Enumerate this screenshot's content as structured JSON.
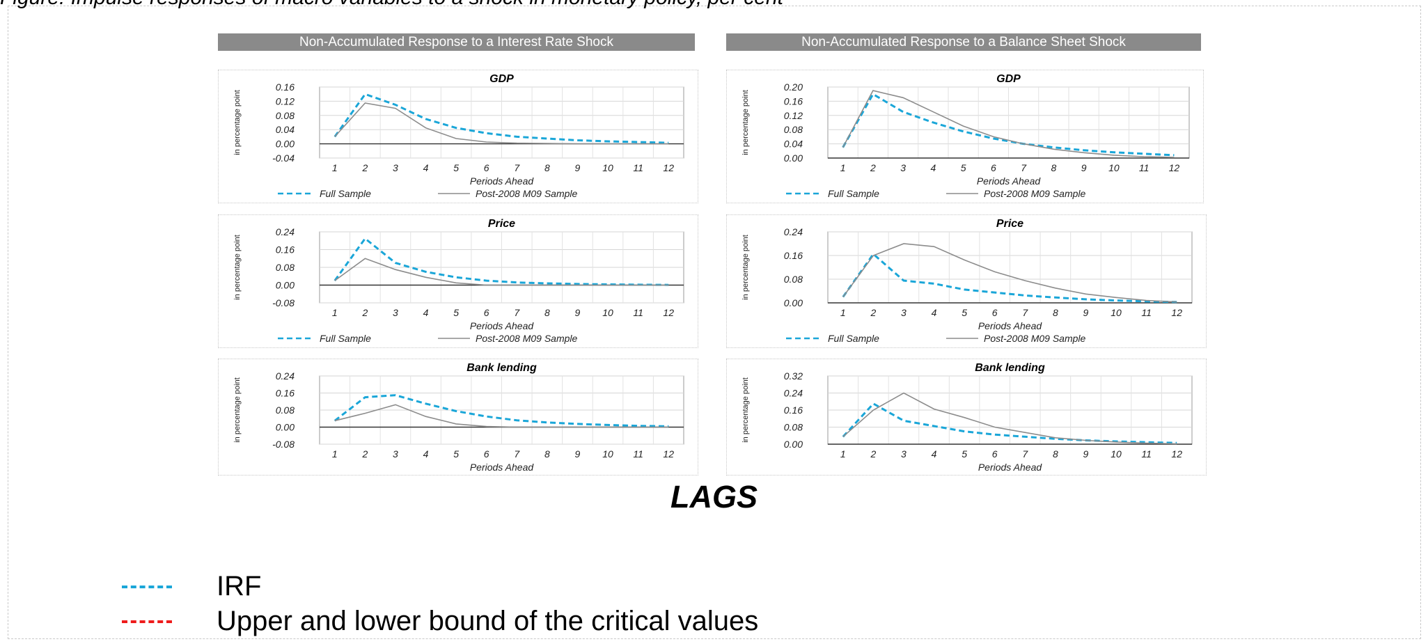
{
  "header_caption": "Figure: Impulse responses of macro variables to a shock in monetary policy, per cent",
  "column_headers": [
    "Non-Accumulated Response to a Interest Rate Shock",
    "Non-Accumulated Response to a Balance Sheet Shock"
  ],
  "x_axis_label": "Periods Ahead",
  "lags_label": "LAGS",
  "colors": {
    "full_sample": "#1aa6d8",
    "post_sample": "#8c8c8c",
    "irf": "#1aa6d8",
    "bounds": "#ee1c1c",
    "header_bg": "#8a8a8a"
  },
  "legend": [
    {
      "color": "#1aa6d8",
      "label": "IRF"
    },
    {
      "color": "#ee1c1c",
      "label": "Upper and lower bound of the critical values"
    }
  ],
  "chart_data": [
    {
      "type": "line",
      "title": "GDP",
      "ylabel": "in percentage point",
      "xlabel": "Periods Ahead",
      "x": [
        1,
        2,
        3,
        4,
        5,
        6,
        7,
        8,
        9,
        10,
        11,
        12
      ],
      "ylim": [
        -0.04,
        0.16
      ],
      "yticks": [
        "0.16",
        "0.12",
        "0.08",
        "0.04",
        "0.00",
        "-0.04"
      ],
      "series": [
        {
          "name": "Full Sample",
          "style": "dashed",
          "values": [
            0.02,
            0.14,
            0.11,
            0.07,
            0.045,
            0.03,
            0.02,
            0.015,
            0.01,
            0.007,
            0.005,
            0.003
          ]
        },
        {
          "name": "Post-2008 M09 Sample",
          "style": "solid",
          "values": [
            0.02,
            0.115,
            0.1,
            0.045,
            0.015,
            0.005,
            0.002,
            0.001,
            0.0,
            0.0,
            0.0,
            0.0
          ]
        }
      ],
      "legend": true
    },
    {
      "type": "line",
      "title": "GDP",
      "ylabel": "in percentage point",
      "xlabel": "Periods Ahead",
      "x": [
        1,
        2,
        3,
        4,
        5,
        6,
        7,
        8,
        9,
        10,
        11,
        12
      ],
      "ylim": [
        0.0,
        0.2
      ],
      "yticks": [
        "0.20",
        "0.16",
        "0.12",
        "0.08",
        "0.04",
        "0.00"
      ],
      "series": [
        {
          "name": "Full Sample",
          "style": "dashed",
          "values": [
            0.03,
            0.18,
            0.13,
            0.1,
            0.075,
            0.055,
            0.04,
            0.03,
            0.022,
            0.016,
            0.012,
            0.008
          ]
        },
        {
          "name": "Post-2008 M09 Sample",
          "style": "solid",
          "values": [
            0.03,
            0.19,
            0.17,
            0.13,
            0.09,
            0.06,
            0.04,
            0.025,
            0.015,
            0.008,
            0.004,
            0.002
          ]
        }
      ],
      "legend": true
    },
    {
      "type": "line",
      "title": "Price",
      "ylabel": "in percentage point",
      "xlabel": "Periods Ahead",
      "x": [
        1,
        2,
        3,
        4,
        5,
        6,
        7,
        8,
        9,
        10,
        11,
        12
      ],
      "ylim": [
        -0.08,
        0.24
      ],
      "yticks": [
        "0.24",
        "0.16",
        "0.08",
        "0.00",
        "-0.08"
      ],
      "series": [
        {
          "name": "Full Sample",
          "style": "dashed",
          "values": [
            0.02,
            0.21,
            0.1,
            0.06,
            0.035,
            0.02,
            0.012,
            0.008,
            0.005,
            0.003,
            0.002,
            0.001
          ]
        },
        {
          "name": "Post-2008 M09 Sample",
          "style": "solid",
          "values": [
            0.02,
            0.12,
            0.07,
            0.035,
            0.01,
            0.0,
            0.0,
            0.0,
            0.0,
            0.0,
            0.0,
            0.0
          ]
        }
      ],
      "legend": true
    },
    {
      "type": "line",
      "title": "Price",
      "ylabel": "in percentage point",
      "xlabel": "Periods Ahead",
      "x": [
        1,
        2,
        3,
        4,
        5,
        6,
        7,
        8,
        9,
        10,
        11,
        12
      ],
      "ylim": [
        0.0,
        0.24
      ],
      "yticks": [
        "0.24",
        "0.16",
        "0.08",
        "0.00"
      ],
      "series": [
        {
          "name": "Full Sample",
          "style": "dashed",
          "values": [
            0.02,
            0.165,
            0.075,
            0.065,
            0.045,
            0.035,
            0.025,
            0.018,
            0.012,
            0.008,
            0.005,
            0.003
          ]
        },
        {
          "name": "Post-2008 M09 Sample",
          "style": "solid",
          "values": [
            0.02,
            0.16,
            0.2,
            0.19,
            0.145,
            0.105,
            0.075,
            0.05,
            0.03,
            0.018,
            0.008,
            0.003
          ]
        }
      ],
      "legend": true
    },
    {
      "type": "line",
      "title": "Bank lending",
      "ylabel": "in percentage point",
      "xlabel": "Periods Ahead",
      "x": [
        1,
        2,
        3,
        4,
        5,
        6,
        7,
        8,
        9,
        10,
        11,
        12
      ],
      "ylim": [
        -0.08,
        0.24
      ],
      "yticks": [
        "0.24",
        "0.16",
        "0.08",
        "0.00",
        "-0.08"
      ],
      "series": [
        {
          "name": "Full Sample",
          "style": "dashed",
          "values": [
            0.03,
            0.14,
            0.15,
            0.11,
            0.075,
            0.05,
            0.032,
            0.022,
            0.015,
            0.01,
            0.006,
            0.004
          ]
        },
        {
          "name": "Post-2008 M09 Sample",
          "style": "solid",
          "values": [
            0.03,
            0.065,
            0.105,
            0.05,
            0.015,
            0.003,
            0.0,
            0.0,
            0.0,
            0.0,
            0.0,
            0.0
          ]
        }
      ],
      "legend": false
    },
    {
      "type": "line",
      "title": "Bank lending",
      "ylabel": "in percentage point",
      "xlabel": "Periods Ahead",
      "x": [
        1,
        2,
        3,
        4,
        5,
        6,
        7,
        8,
        9,
        10,
        11,
        12
      ],
      "ylim": [
        0.0,
        0.32
      ],
      "yticks": [
        "0.32",
        "0.24",
        "0.16",
        "0.08",
        "0.00"
      ],
      "series": [
        {
          "name": "Full Sample",
          "style": "dashed",
          "values": [
            0.035,
            0.19,
            0.11,
            0.085,
            0.06,
            0.045,
            0.035,
            0.025,
            0.018,
            0.013,
            0.009,
            0.006
          ]
        },
        {
          "name": "Post-2008 M09 Sample",
          "style": "solid",
          "values": [
            0.035,
            0.16,
            0.24,
            0.165,
            0.125,
            0.08,
            0.055,
            0.03,
            0.018,
            0.01,
            0.005,
            0.002
          ]
        }
      ],
      "legend": false
    }
  ]
}
